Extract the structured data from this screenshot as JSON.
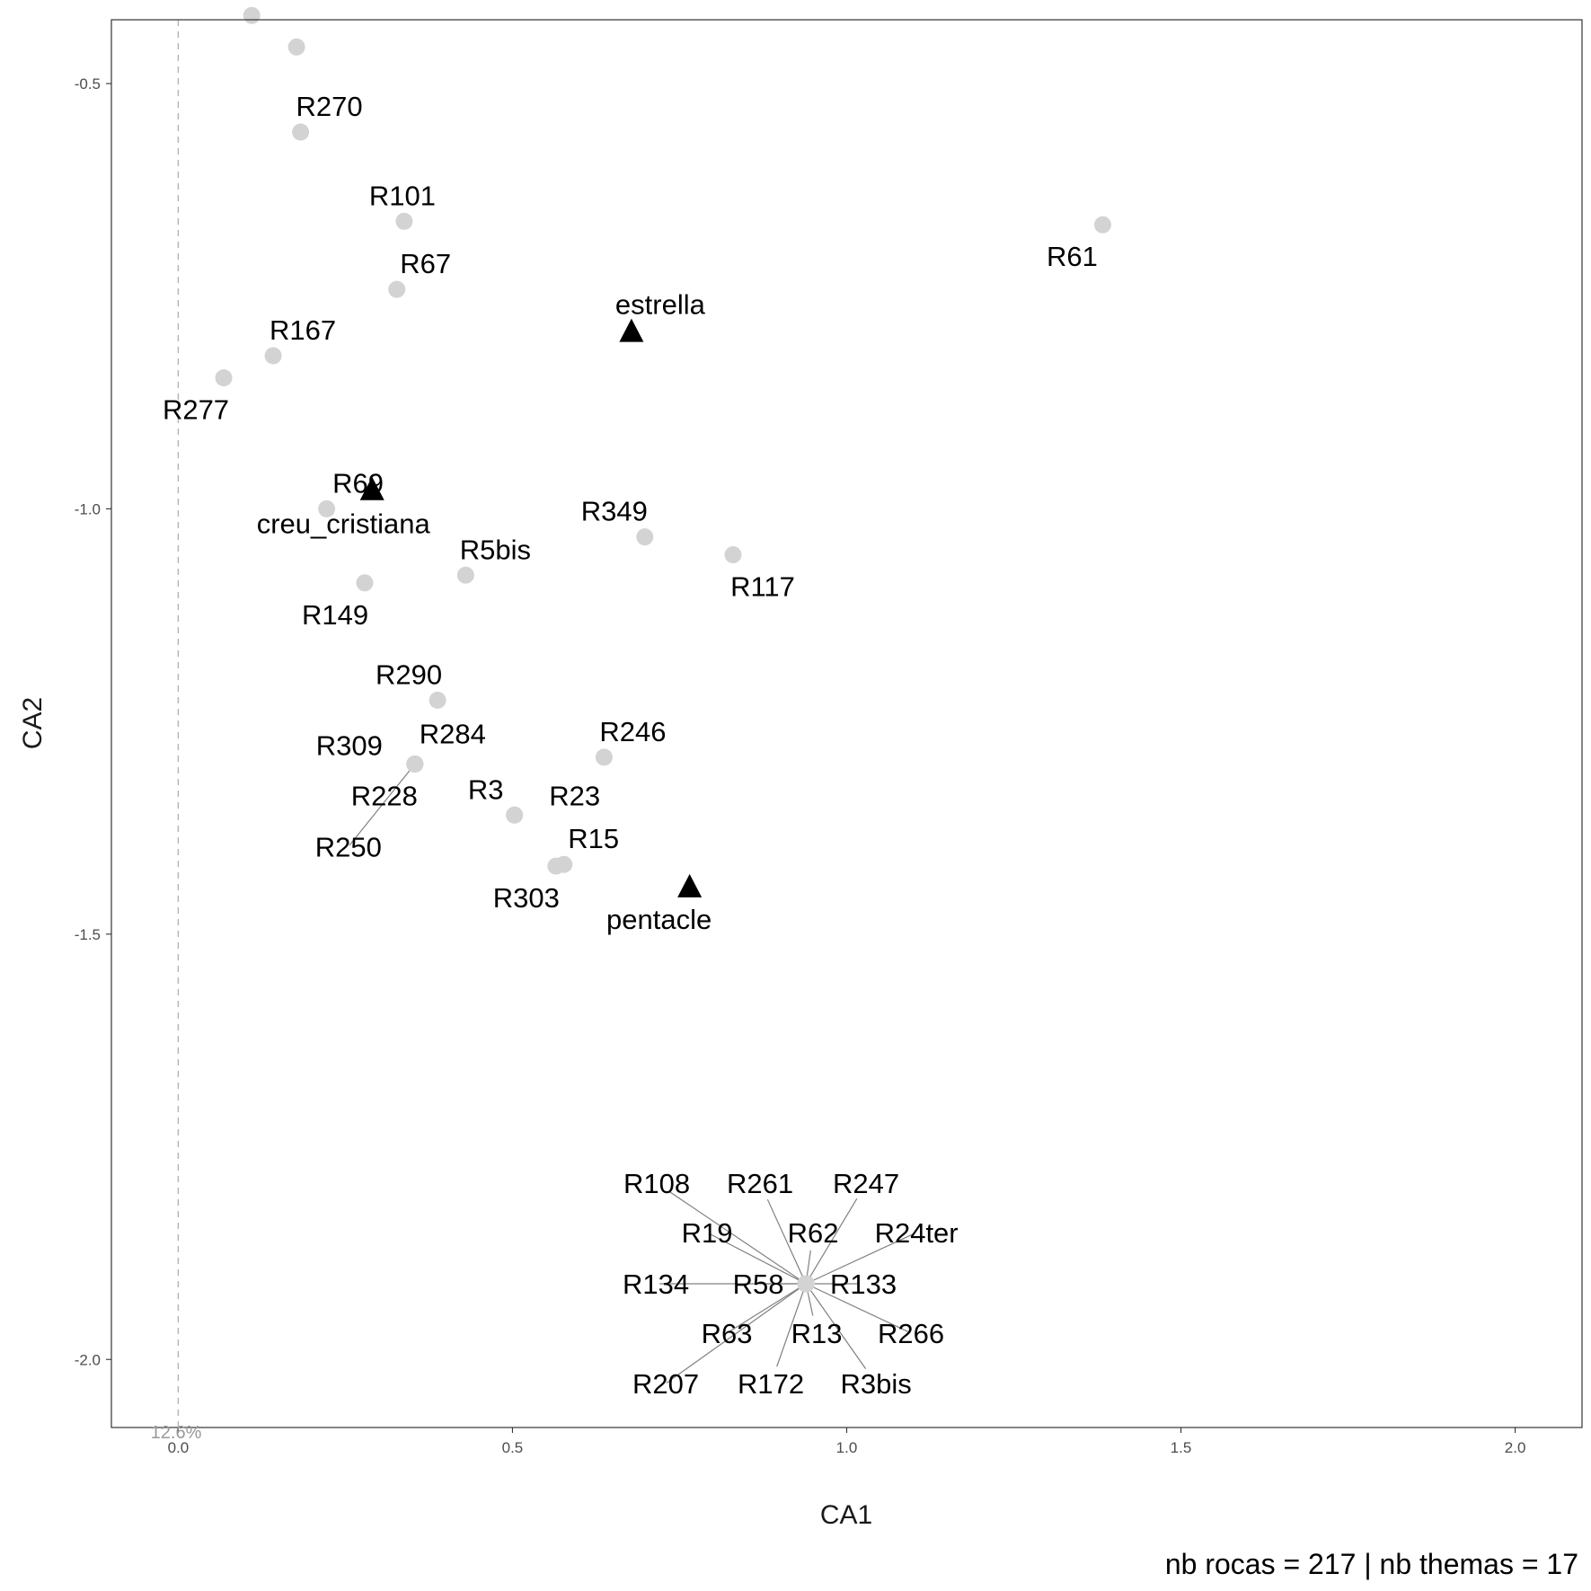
{
  "chart_data": {
    "type": "scatter",
    "xlabel": "CA1",
    "ylabel": "CA2",
    "xlim": [
      -0.1,
      2.1
    ],
    "ylim": [
      -2.08,
      -0.425
    ],
    "x_ticks": [
      {
        "value": 0.0,
        "label": "0.0"
      },
      {
        "value": 0.5,
        "label": "0.5"
      },
      {
        "value": 1.0,
        "label": "1.0"
      },
      {
        "value": 1.5,
        "label": "1.5"
      },
      {
        "value": 2.0,
        "label": "2.0"
      }
    ],
    "y_ticks": [
      {
        "value": -0.5,
        "label": "-0.5"
      },
      {
        "value": -1.0,
        "label": "-1.0"
      },
      {
        "value": -1.5,
        "label": "-1.5"
      },
      {
        "value": -2.0,
        "label": "-2.0"
      }
    ],
    "grid": false,
    "reference_line": {
      "axis": "x",
      "value": 0,
      "style": "dashed",
      "label": "12.6%"
    },
    "caption": "nb rocas = 217 | nb themas = 17",
    "colors": {
      "rocas": "#d3d3d3",
      "themas": "#000000",
      "connector": "#808080",
      "refline": "#b3b3b3"
    },
    "series": [
      {
        "marker": "circle",
        "points": [
          {
            "label": "",
            "x": 0.11,
            "y": -0.42
          },
          {
            "label": "",
            "x": 0.177,
            "y": -0.457
          },
          {
            "label": "R270",
            "x": 0.183,
            "y": -0.557
          },
          {
            "label": "R101",
            "x": 0.338,
            "y": -0.662
          },
          {
            "label": "R61",
            "x": 1.383,
            "y": -0.666
          },
          {
            "label": "R67",
            "x": 0.327,
            "y": -0.742
          },
          {
            "label": "R167",
            "x": 0.142,
            "y": -0.82
          },
          {
            "label": "R277",
            "x": 0.068,
            "y": -0.846
          },
          {
            "label": "R69",
            "x": 0.222,
            "y": -1.0
          },
          {
            "label": "R349",
            "x": 0.698,
            "y": -1.033
          },
          {
            "label": "R117",
            "x": 0.83,
            "y": -1.054
          },
          {
            "label": "R5bis",
            "x": 0.43,
            "y": -1.078
          },
          {
            "label": "R149",
            "x": 0.279,
            "y": -1.087
          },
          {
            "label": "R290",
            "x": 0.388,
            "y": -1.225
          },
          {
            "label": "R246",
            "x": 0.637,
            "y": -1.292
          },
          {
            "label": "R309",
            "x": 0.354,
            "y": -1.3
          },
          {
            "label": "R284",
            "x": 0.354,
            "y": -1.3
          },
          {
            "label": "R228",
            "x": 0.354,
            "y": -1.3
          },
          {
            "label": "R250",
            "x": 0.354,
            "y": -1.3
          },
          {
            "label": "R3",
            "x": 0.503,
            "y": -1.36
          },
          {
            "label": "R23",
            "x": 0.503,
            "y": -1.36
          },
          {
            "label": "R15",
            "x": 0.577,
            "y": -1.418
          },
          {
            "label": "R303",
            "x": 0.565,
            "y": -1.42
          },
          {
            "label": "R108",
            "x": 0.939,
            "y": -1.911
          },
          {
            "label": "R261",
            "x": 0.939,
            "y": -1.911
          },
          {
            "label": "R247",
            "x": 0.939,
            "y": -1.911
          },
          {
            "label": "R19",
            "x": 0.939,
            "y": -1.911
          },
          {
            "label": "R62",
            "x": 0.939,
            "y": -1.911
          },
          {
            "label": "R24ter",
            "x": 0.939,
            "y": -1.911
          },
          {
            "label": "R134",
            "x": 0.939,
            "y": -1.911
          },
          {
            "label": "R58",
            "x": 0.939,
            "y": -1.911
          },
          {
            "label": "R133",
            "x": 0.939,
            "y": -1.911
          },
          {
            "label": "R63",
            "x": 0.939,
            "y": -1.911
          },
          {
            "label": "R13",
            "x": 0.939,
            "y": -1.911
          },
          {
            "label": "R266",
            "x": 0.939,
            "y": -1.911
          },
          {
            "label": "R207",
            "x": 0.939,
            "y": -1.911
          },
          {
            "label": "R172",
            "x": 0.939,
            "y": -1.911
          },
          {
            "label": "R3bis",
            "x": 0.939,
            "y": -1.911
          }
        ]
      },
      {
        "marker": "triangle",
        "points": [
          {
            "label": "estrella",
            "x": 0.678,
            "y": -0.79
          },
          {
            "label": "creu_cristiana",
            "x": 0.29,
            "y": -0.976
          },
          {
            "label": "pentacle",
            "x": 0.765,
            "y": -1.443
          }
        ]
      }
    ]
  }
}
